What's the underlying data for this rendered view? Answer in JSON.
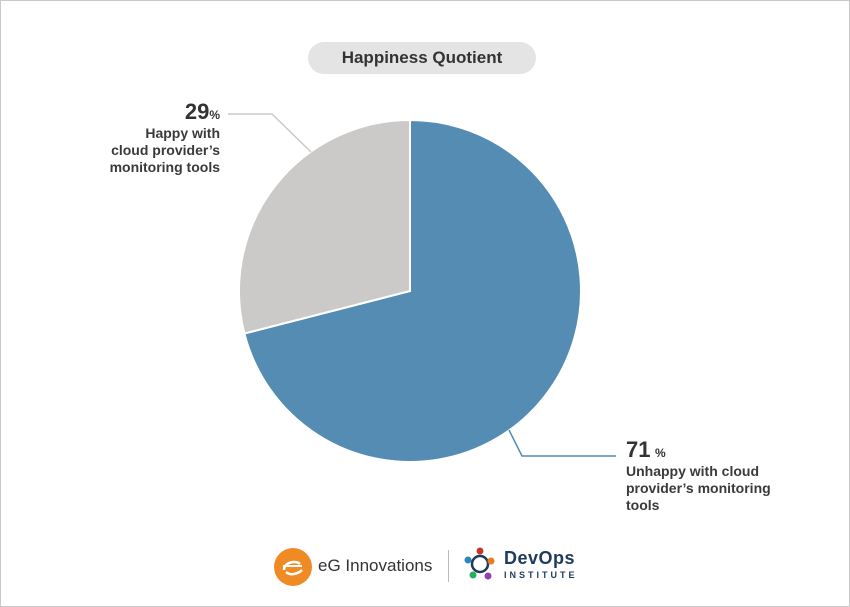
{
  "title": "Happiness Quotient",
  "chart_data": {
    "type": "pie",
    "title": "Happiness Quotient",
    "slices": [
      {
        "label": "Unhappy with cloud provider’s monitoring tools",
        "value": 71,
        "color": "#548cb3"
      },
      {
        "label": "Happy with cloud provider’s monitoring tools",
        "value": 29,
        "color": "#cbcac9"
      }
    ]
  },
  "labels": {
    "happy": {
      "pct": "29",
      "sym": "%",
      "line1": "Happy with",
      "line2": "cloud provider’s",
      "line3": "monitoring tools"
    },
    "unhappy": {
      "pct": "71",
      "sym": "%",
      "line1": "Unhappy with cloud",
      "line2": "provider’s monitoring",
      "line3": "tools"
    }
  },
  "footer": {
    "eg_name": "eG Innovations",
    "devops_name": "DevOps",
    "devops_sub": "INSTITUTE"
  },
  "colors": {
    "accent_blue": "#548cb3",
    "grey": "#cbcac9",
    "eg_orange": "#f08a24",
    "devops_navy": "#1f3b5c"
  }
}
